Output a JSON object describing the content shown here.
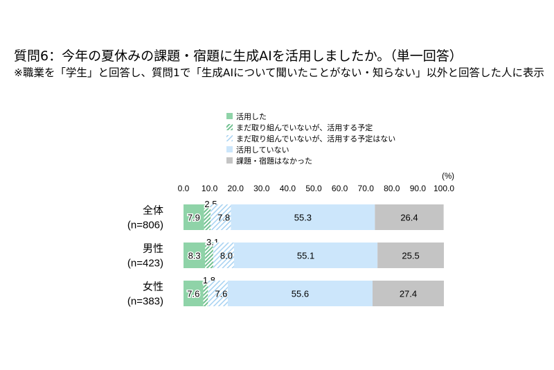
{
  "title": "質問6：今年の夏休みの課題・宿題に生成AIを活用しましたか。（単一回答）",
  "subtitle": "※職業を「学生」と回答し、質問1で「生成AIについて聞いたことがない・知らない」以外と回答した人に表示",
  "chart_data": {
    "type": "bar",
    "orientation": "horizontal",
    "stacked": true,
    "unit_label": "(%)",
    "xlim": [
      0,
      100
    ],
    "xticks": [
      "0.0",
      "10.0",
      "20.0",
      "30.0",
      "40.0",
      "50.0",
      "60.0",
      "70.0",
      "80.0",
      "90.0",
      "100.0"
    ],
    "categories": [
      {
        "label": "全体",
        "n": "(n=806)"
      },
      {
        "label": "男性",
        "n": "(n=423)"
      },
      {
        "label": "女性",
        "n": "(n=383)"
      }
    ],
    "series": [
      {
        "name": "活用した",
        "values": [
          7.9,
          8.3,
          7.6
        ],
        "color": "#8fd3a8",
        "pattern": "solid"
      },
      {
        "name": "まだ取り組んでいないが、活用する予定",
        "values": [
          2.5,
          3.1,
          1.8
        ],
        "color": "#7cc99a",
        "pattern": "hatch-dense"
      },
      {
        "name": "まだ取り組んでいないが、活用する予定はない",
        "values": [
          7.8,
          8.0,
          7.6
        ],
        "color": "#a9d3f2",
        "pattern": "hatch-light"
      },
      {
        "name": "活用していない",
        "values": [
          55.3,
          55.1,
          55.6
        ],
        "color": "#cce6fb",
        "pattern": "solid"
      },
      {
        "name": "課題・宿題はなかった",
        "values": [
          26.4,
          25.5,
          27.4
        ],
        "color": "#c4c4c4",
        "pattern": "solid"
      }
    ],
    "legend_position": "top",
    "grid": false
  }
}
